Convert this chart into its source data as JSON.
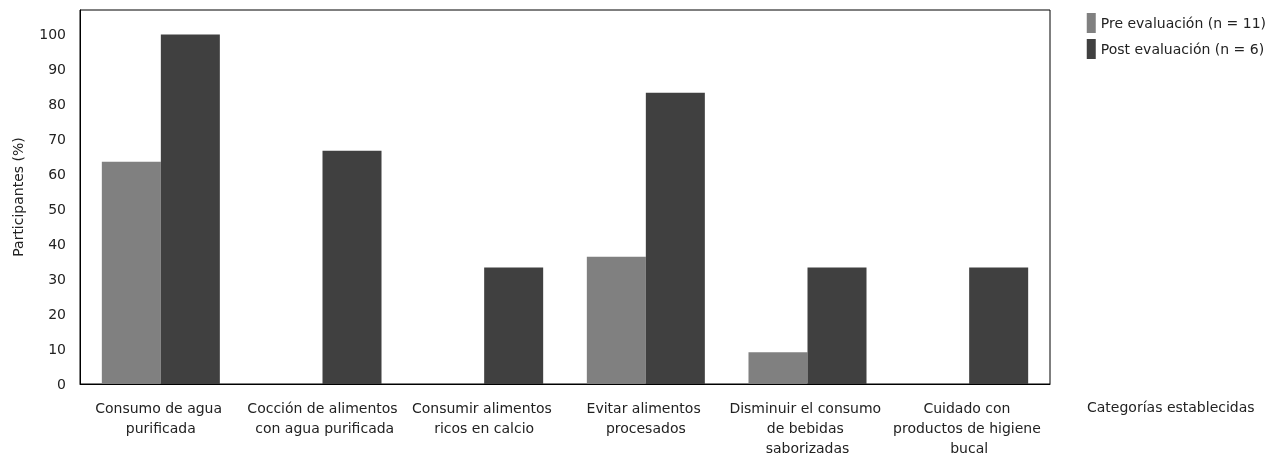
{
  "chart_data": {
    "type": "bar",
    "xlabel": "Categorías establecidas",
    "ylabel": "Participantes (%)",
    "categories": [
      "Consumo de agua purificada",
      "Cocción de alimentos con agua purificada",
      "Consumir alimentos ricos en calcio",
      "Evitar alimentos procesados",
      "Disminuir el consumo de bebidas saborizadas",
      "Cuidado con productos de higiene bucal"
    ],
    "series": [
      {
        "name": "Pre evaluación (n = 11)",
        "color": "#808080",
        "values": [
          63.6,
          0,
          0,
          36.4,
          9.1,
          0
        ]
      },
      {
        "name": "Post evaluación (n = 6)",
        "color": "#404040",
        "values": [
          100,
          66.7,
          33.3,
          83.3,
          33.3,
          33.3
        ]
      }
    ],
    "ylim": [
      0,
      107
    ],
    "yticks": [
      0,
      10,
      20,
      30,
      40,
      50,
      60,
      70,
      80,
      90,
      100
    ],
    "grid": false,
    "legend": "top right"
  }
}
